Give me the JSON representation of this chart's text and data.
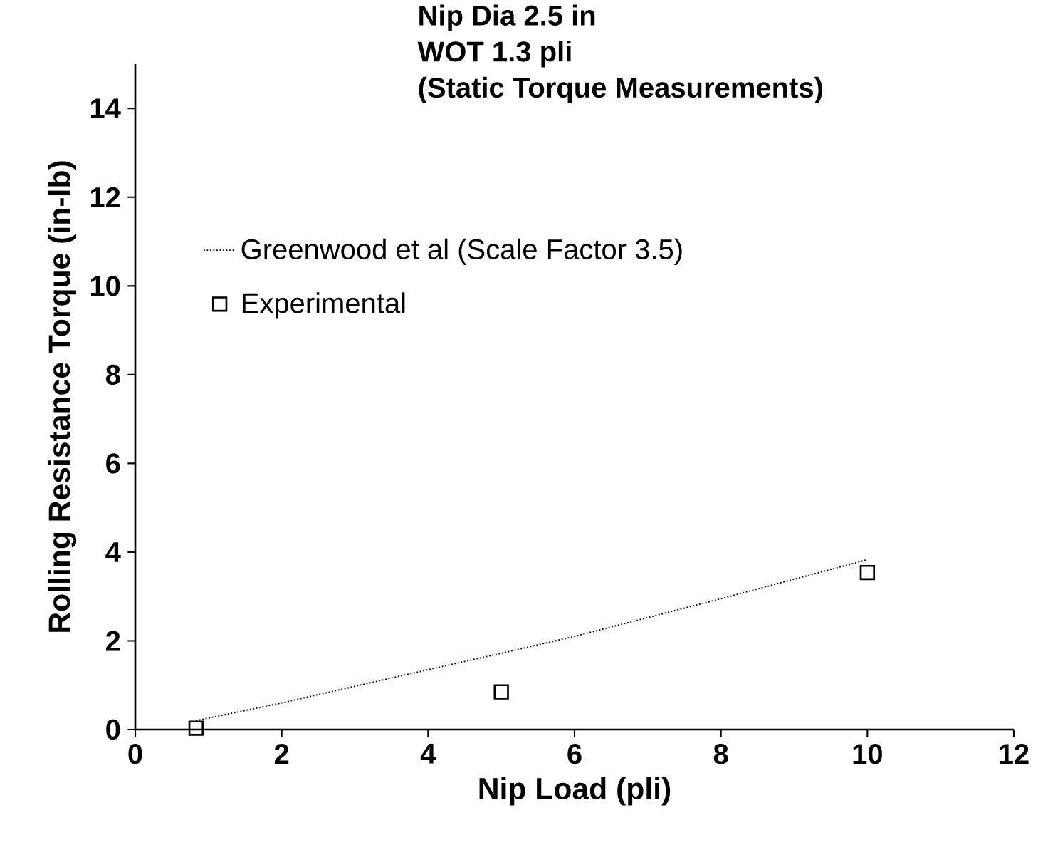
{
  "chart_data": {
    "type": "line",
    "title": "Nip Dia 2.5 in",
    "subtitle": "WOT 1.3 pli",
    "annotations": [
      "(Static Torque Measurements)"
    ],
    "xlabel": "Nip Load (pli)",
    "ylabel": "Rolling Resistance Torque (in-lb)",
    "series": [
      {
        "name": "Greenwood et al (Scale Factor 3.5)",
        "line_style": "dotted",
        "marker": "none",
        "color": "#000000",
        "x": [
          0.83,
          2,
          4,
          5,
          6,
          8,
          10
        ],
        "values": [
          0.2,
          0.6,
          1.35,
          1.72,
          2.1,
          2.95,
          3.83
        ]
      },
      {
        "name": "Experimental",
        "type": "scatter",
        "marker": "square",
        "color": "#000000",
        "x": [
          0.83,
          5,
          10
        ],
        "values": [
          0.03,
          0.85,
          3.54
        ]
      }
    ],
    "xlim": [
      0,
      12
    ],
    "ylim": [
      0,
      15
    ],
    "xticks": [
      0,
      2,
      4,
      6,
      8,
      10,
      12
    ],
    "yticks": [
      0,
      2,
      4,
      6,
      8,
      10,
      12,
      14
    ],
    "grid": false,
    "legend": "left"
  }
}
